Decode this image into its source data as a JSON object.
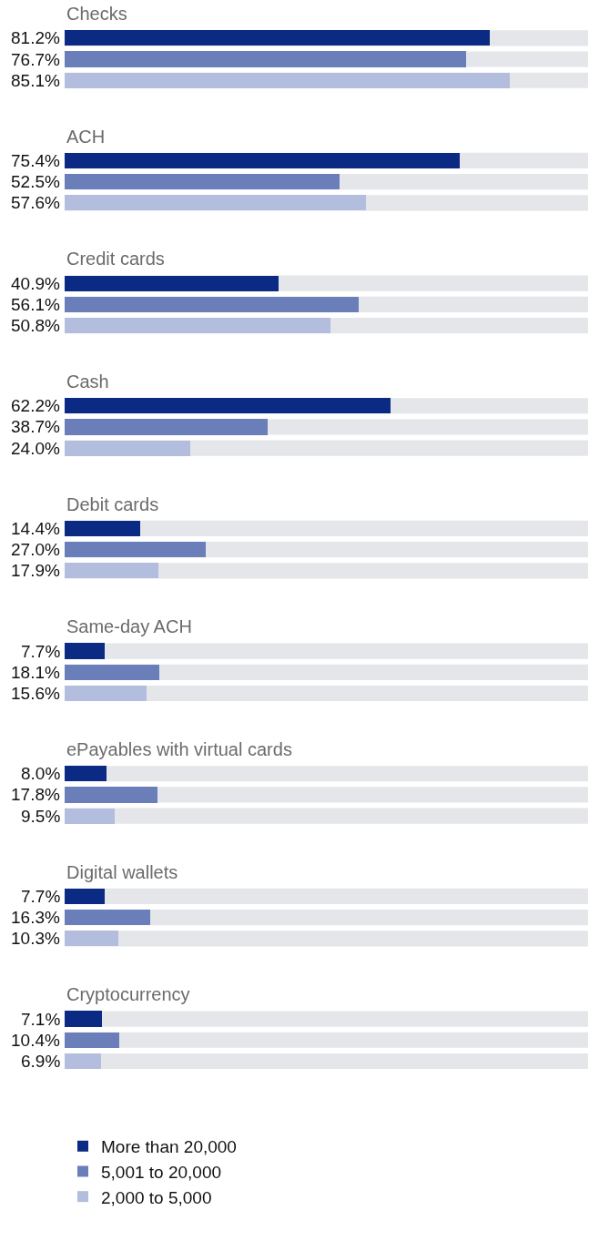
{
  "chart_data": {
    "type": "bar",
    "orientation": "horizontal",
    "categories": [
      "Checks",
      "ACH",
      "Credit cards",
      "Cash",
      "Debit cards",
      "Same-day ACH",
      "ePayables with virtual cards",
      "Digital wallets",
      "Cryptocurrency"
    ],
    "series": [
      {
        "name": "More than 20,000",
        "color": "#0a2a83",
        "values": [
          81.2,
          75.4,
          40.9,
          62.2,
          14.4,
          7.7,
          8.0,
          7.7,
          7.1
        ],
        "value_labels": [
          "81.2%",
          "75.4%",
          "40.9%",
          "62.2%",
          "14.4%",
          "7.7%",
          "8.0%",
          "7.7%",
          "7.1%"
        ]
      },
      {
        "name": "5,001 to 20,000",
        "color": "#6a7fba",
        "values": [
          76.7,
          52.5,
          56.1,
          38.7,
          27.0,
          18.1,
          17.8,
          16.3,
          10.4
        ],
        "value_labels": [
          "76.7%",
          "52.5%",
          "56.1%",
          "38.7%",
          "27.0%",
          "18.1%",
          "17.8%",
          "16.3%",
          "10.4%"
        ]
      },
      {
        "name": "2,000 to 5,000",
        "color": "#b3bddd",
        "values": [
          85.1,
          57.6,
          50.8,
          24.0,
          17.9,
          15.6,
          9.5,
          10.3,
          6.9
        ],
        "value_labels": [
          "85.1%",
          "57.6%",
          "50.8%",
          "24.0%",
          "17.9%",
          "15.6%",
          "9.5%",
          "10.3%",
          "6.9%"
        ]
      }
    ],
    "xlim": [
      0,
      100
    ],
    "tick_labels": false,
    "grid": false,
    "legend": "bottom"
  }
}
